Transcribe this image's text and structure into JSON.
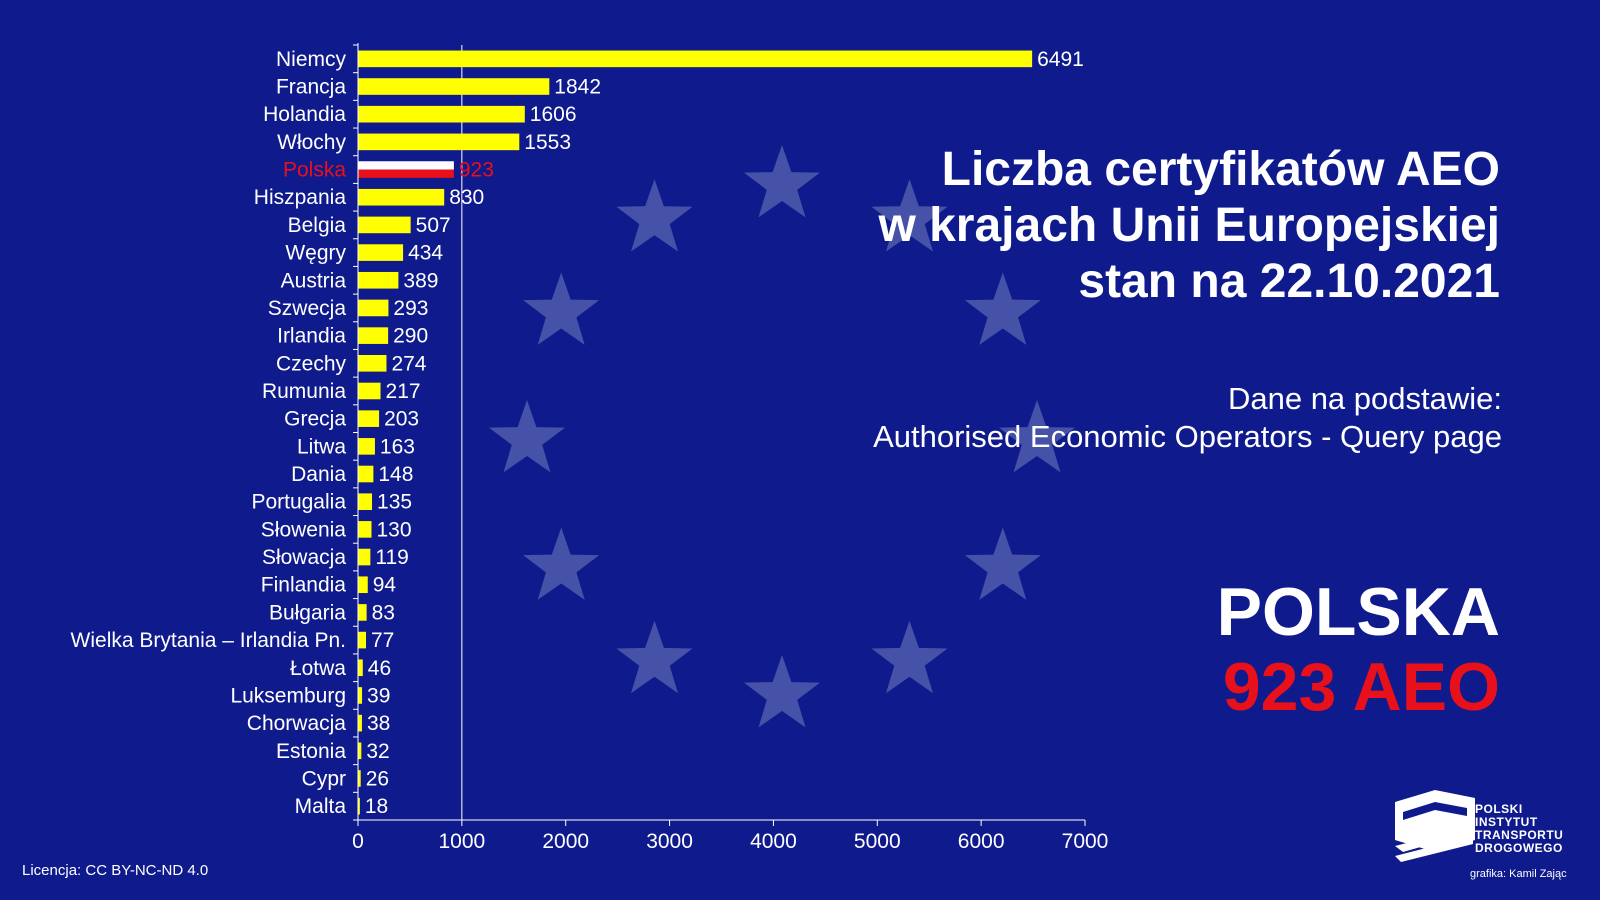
{
  "title": {
    "line1": "Liczba certyfikatów AEO",
    "line2": "w krajach Unii Europejskiej",
    "line3": "stan na 22.10.2021"
  },
  "source": {
    "line1": "Dane na podstawie:",
    "line2": "Authorised Economic Operators - Query page"
  },
  "highlight": {
    "country": "POLSKA",
    "value": "923 AEO"
  },
  "license": "Licencja: CC BY-NC-ND 4.0",
  "logo": {
    "line1": "POLSKI",
    "line2": "INSTYTUT",
    "line3": "TRANSPORTU",
    "line4": "DROGOWEGO",
    "icon": "pitd-logo-icon"
  },
  "credit": "grafika: Kamil Zając",
  "colors": {
    "background": "#0f1b8c",
    "bar": "#ffff00",
    "highlight_red": "#e8101a",
    "star": "#4552a8"
  },
  "chart_data": {
    "type": "bar",
    "orientation": "horizontal",
    "categories": [
      "Niemcy",
      "Francja",
      "Holandia",
      "Włochy",
      "Polska",
      "Hiszpania",
      "Belgia",
      "Węgry",
      "Austria",
      "Szwecja",
      "Irlandia",
      "Czechy",
      "Rumunia",
      "Grecja",
      "Litwa",
      "Dania",
      "Portugalia",
      "Słowenia",
      "Słowacja",
      "Finlandia",
      "Bułgaria",
      "Wielka Brytania – Irlandia Pn.",
      "Łotwa",
      "Luksemburg",
      "Chorwacja",
      "Estonia",
      "Cypr",
      "Malta"
    ],
    "values": [
      6491,
      1842,
      1606,
      1553,
      923,
      830,
      507,
      434,
      389,
      293,
      290,
      274,
      217,
      203,
      163,
      148,
      135,
      130,
      119,
      94,
      83,
      77,
      46,
      39,
      38,
      32,
      26,
      18
    ],
    "highlight_category": "Polska",
    "xlim": [
      0,
      7000
    ],
    "xticks": [
      0,
      1000,
      2000,
      3000,
      4000,
      5000,
      6000,
      7000
    ],
    "reference_line": 1000,
    "grid": false
  }
}
